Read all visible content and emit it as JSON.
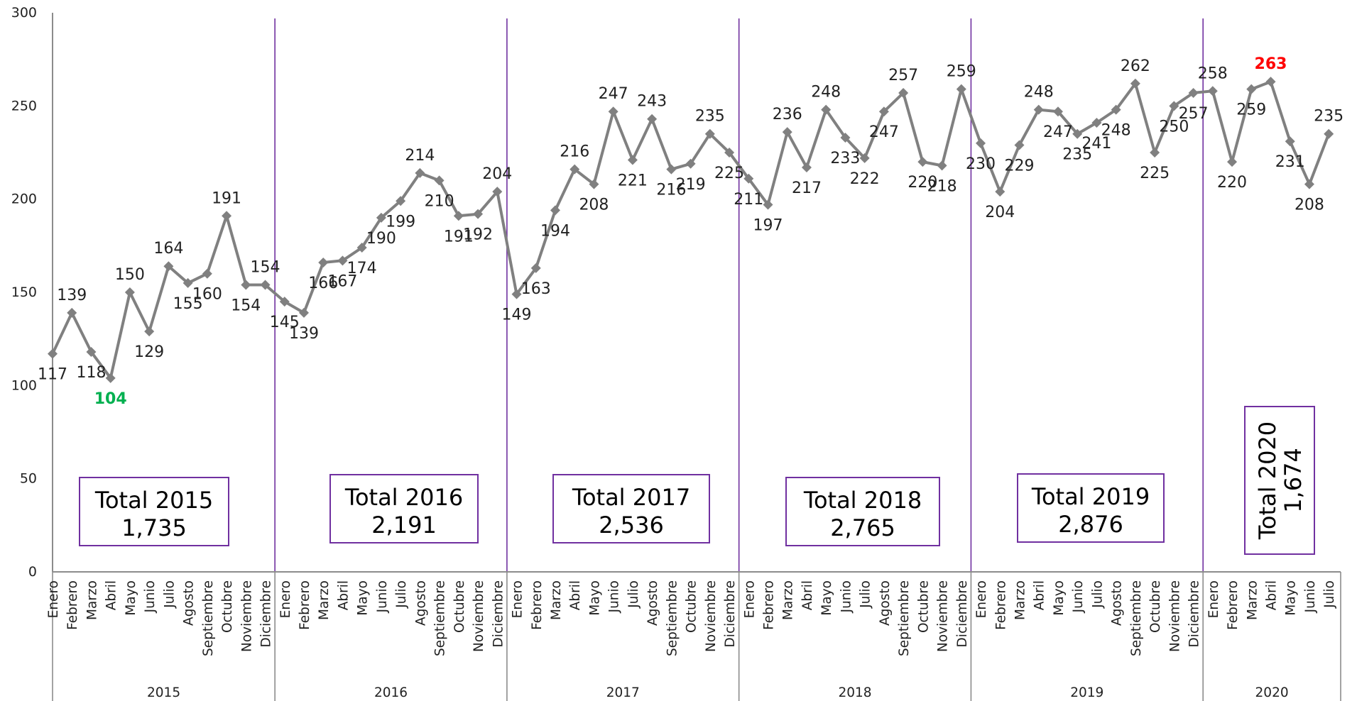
{
  "chart_data": {
    "type": "line",
    "title": "",
    "xlabel": "",
    "ylabel": "",
    "ylim": [
      0,
      300
    ],
    "yticks": [
      0,
      50,
      100,
      150,
      200,
      250,
      300
    ],
    "grid": false,
    "legend": "none",
    "colors": {
      "series": "#808080",
      "separator": "#7030a0",
      "min_label": "#00b050",
      "max_label": "#ff0000",
      "text": "#222222"
    },
    "years": [
      {
        "label": "2015",
        "months": [
          "Enero",
          "Febrero",
          "Marzo",
          "Abril",
          "Mayo",
          "Junio",
          "Julio",
          "Agosto",
          "Septiembre",
          "Octubre",
          "Noviembre",
          "Diciembre"
        ],
        "values": [
          117,
          139,
          118,
          104,
          150,
          129,
          164,
          155,
          160,
          191,
          154,
          154
        ]
      },
      {
        "label": "2016",
        "months": [
          "Enero",
          "Febrero",
          "Marzo",
          "Abril",
          "Mayo",
          "Junio",
          "Julio",
          "Agosto",
          "Septiembre",
          "Octubre",
          "Noviembre",
          "Diciembre"
        ],
        "values": [
          145,
          139,
          166,
          167,
          174,
          190,
          199,
          214,
          210,
          191,
          192,
          204
        ]
      },
      {
        "label": "2017",
        "months": [
          "Enero",
          "Febrero",
          "Marzo",
          "Abril",
          "Mayo",
          "Junio",
          "Julio",
          "Agosto",
          "Septiembre",
          "Octubre",
          "Noviembre",
          "Diciembre"
        ],
        "values": [
          149,
          163,
          194,
          216,
          208,
          247,
          221,
          243,
          216,
          219,
          235,
          225
        ]
      },
      {
        "label": "2018",
        "months": [
          "Enero",
          "Febrero",
          "Marzo",
          "Abril",
          "Mayo",
          "Junio",
          "Julio",
          "Agosto",
          "Septiembre",
          "Octubre",
          "Noviembre",
          "Diciembre"
        ],
        "values": [
          211,
          197,
          236,
          217,
          248,
          233,
          222,
          247,
          257,
          220,
          218,
          259
        ]
      },
      {
        "label": "2019",
        "months": [
          "Enero",
          "Febrero",
          "Marzo",
          "Abril",
          "Mayo",
          "Junio",
          "Julio",
          "Agosto",
          "Septiembre",
          "Octubre",
          "Noviembre",
          "Diciembre"
        ],
        "values": [
          230,
          204,
          229,
          248,
          247,
          235,
          241,
          248,
          262,
          225,
          250,
          257
        ]
      },
      {
        "label": "2020",
        "months": [
          "Enero",
          "Febrero",
          "Marzo",
          "Abril",
          "Mayo",
          "Junio",
          "Julio"
        ],
        "values": [
          258,
          220,
          259,
          263,
          231,
          208,
          235
        ]
      }
    ],
    "highlights": {
      "min": {
        "year": "2015",
        "month": "Abril",
        "value": 104
      },
      "max": {
        "year": "2020",
        "month": "Abril",
        "value": 263
      }
    },
    "totals": [
      {
        "label": "Total 2015",
        "value": "1,735"
      },
      {
        "label": "Total 2016",
        "value": "2,191"
      },
      {
        "label": "Total 2017",
        "value": "2,536"
      },
      {
        "label": "Total 2018",
        "value": "2,765"
      },
      {
        "label": "Total 2019",
        "value": "2,876"
      },
      {
        "label": "Total 2020",
        "value": "1,674",
        "orientation": "vertical"
      }
    ]
  }
}
